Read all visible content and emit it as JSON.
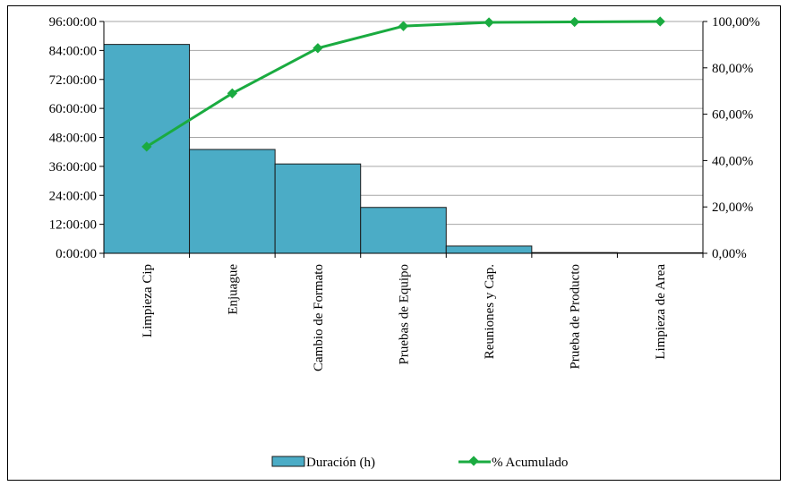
{
  "chart_data": {
    "type": "bar",
    "categories": [
      "Limpieza Cip",
      "Enjuague",
      "Cambio de Formato",
      "Pruebas de Equipo",
      "Reuniones y Cap.",
      "Prueba de Producto",
      "Limpieza de Area"
    ],
    "series": [
      {
        "name": "Duración (h)",
        "type": "bar",
        "axis": "left",
        "color": "#4bacc6",
        "values_hours": [
          86.5,
          43,
          37,
          19,
          3,
          0.3,
          0.2
        ]
      },
      {
        "name": "% Acumulado",
        "type": "line",
        "axis": "right",
        "color": "#1aab40",
        "values_percent": [
          46,
          69,
          88.5,
          98,
          99.6,
          99.8,
          100
        ]
      }
    ],
    "y_left": {
      "ticks": [
        "0:00:00",
        "12:00:00",
        "24:00:00",
        "36:00:00",
        "48:00:00",
        "60:00:00",
        "72:00:00",
        "84:00:00",
        "96:00:00"
      ],
      "range_hours": [
        0,
        96
      ]
    },
    "y_right": {
      "ticks": [
        "0,00%",
        "20,00%",
        "40,00%",
        "60,00%",
        "80,00%",
        "100,00%"
      ],
      "range_percent": [
        0,
        100
      ]
    },
    "grid": true,
    "legend_position": "bottom"
  }
}
